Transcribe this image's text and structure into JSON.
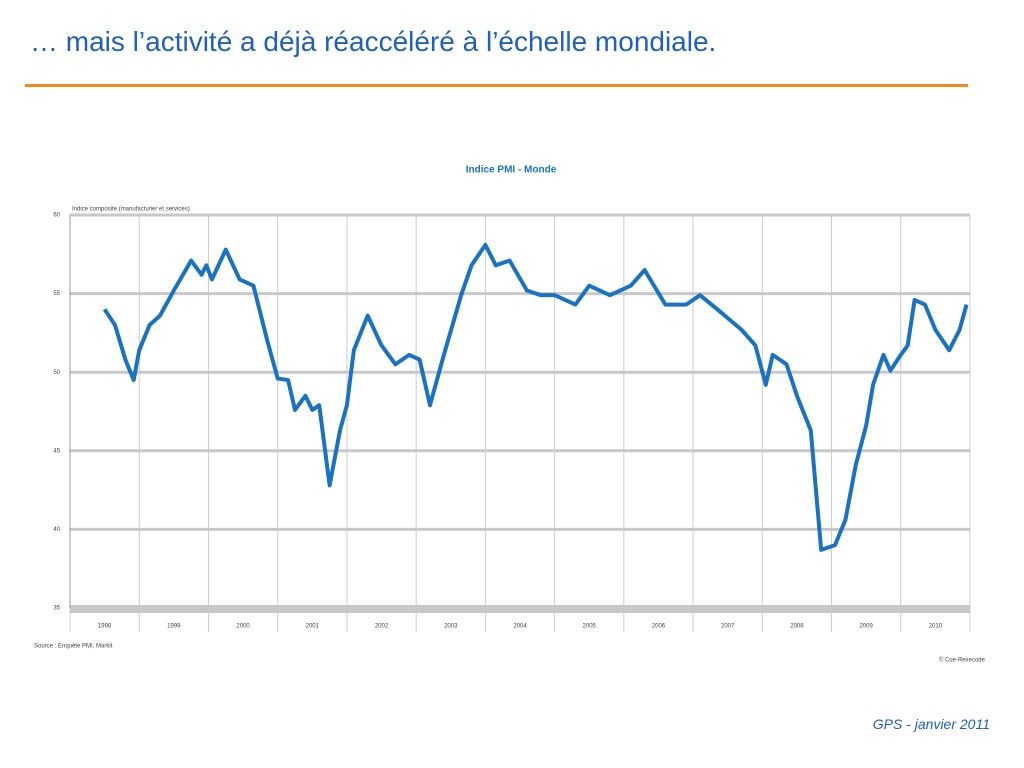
{
  "slide_title": "… mais l’activité a déjà réaccéléré à l’échelle mondiale.",
  "footer": "GPS - janvier 2011",
  "chart_data": {
    "type": "line",
    "title": "Indice PMI - Monde",
    "y_label": "Indice composite (manufacturier et services)",
    "source": "Source : Enquête PMI, Markit",
    "credit": "© Coe-Rexecode",
    "categories": [
      "1998",
      "1999",
      "2000",
      "2001",
      "2002",
      "2003",
      "2004",
      "2005",
      "2006",
      "2007",
      "2008",
      "2009",
      "2010"
    ],
    "xlim": [
      1998,
      2011
    ],
    "xticks": [
      1998,
      1999,
      2000,
      2001,
      2002,
      2003,
      2004,
      2005,
      2006,
      2007,
      2008,
      2009,
      2010,
      2011
    ],
    "ylim": [
      35,
      60
    ],
    "yticks": [
      35,
      40,
      45,
      50,
      55,
      60
    ],
    "grid": true,
    "series": [
      {
        "name": "Indice PMI - Monde",
        "color": "#1a72c4",
        "x": [
          1998.5,
          1998.65,
          1998.8,
          1998.92,
          1999.0,
          1999.15,
          1999.3,
          1999.5,
          1999.75,
          1999.9,
          1999.97,
          2000.05,
          2000.25,
          2000.45,
          2000.65,
          2000.85,
          2001.0,
          2001.15,
          2001.25,
          2001.4,
          2001.5,
          2001.6,
          2001.75,
          2001.9,
          2002.0,
          2002.1,
          2002.3,
          2002.5,
          2002.7,
          2002.9,
          2003.05,
          2003.2,
          2003.4,
          2003.65,
          2003.8,
          2004.0,
          2004.15,
          2004.35,
          2004.6,
          2004.8,
          2005.0,
          2005.3,
          2005.5,
          2005.8,
          2006.1,
          2006.3,
          2006.6,
          2006.9,
          2007.1,
          2007.35,
          2007.7,
          2007.9,
          2008.05,
          2008.15,
          2008.35,
          2008.5,
          2008.7,
          2008.85,
          2009.05,
          2009.2,
          2009.35,
          2009.5,
          2009.6,
          2009.75,
          2009.85,
          2010.0,
          2010.1,
          2010.2,
          2010.35,
          2010.5,
          2010.7,
          2010.85,
          2010.95
        ],
        "values": [
          54,
          53,
          50.8,
          49.5,
          51.4,
          53,
          53.6,
          55.2,
          57.1,
          56.2,
          56.8,
          55.9,
          57.8,
          55.9,
          55.5,
          52,
          49.6,
          49.5,
          47.6,
          48.5,
          47.6,
          47.9,
          42.8,
          46.3,
          47.9,
          51.4,
          53.6,
          51.7,
          50.5,
          51.1,
          50.8,
          47.9,
          51.1,
          54.9,
          56.8,
          58.1,
          56.8,
          57.1,
          55.2,
          54.9,
          54.9,
          54.3,
          55.5,
          54.9,
          55.5,
          56.5,
          54.3,
          54.3,
          54.9,
          54,
          52.7,
          51.7,
          49.2,
          51.1,
          50.5,
          48.5,
          46.3,
          38.7,
          39,
          40.6,
          44.1,
          46.6,
          49.2,
          51.1,
          50.1,
          51.1,
          51.7,
          54.6,
          54.3,
          52.7,
          51.4,
          52.7,
          54.3
        ]
      }
    ]
  }
}
